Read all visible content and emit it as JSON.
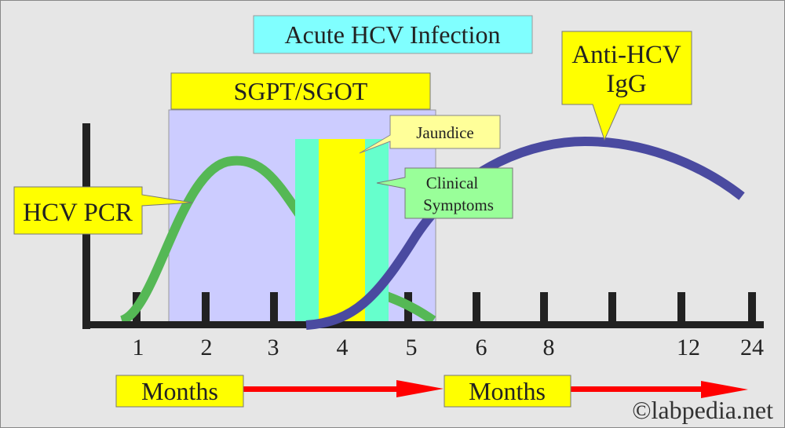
{
  "title": "Acute HCV Infection",
  "labels": {
    "sgpt": "SGPT/SGOT",
    "hcv_pcr": "HCV PCR",
    "jaundice": "Jaundice",
    "clinical_line1": "Clinical",
    "clinical_line2": "Symptoms",
    "anti_hcv_line1": "Anti-HCV",
    "anti_hcv_line2": "IgG"
  },
  "x_ticks": [
    "1",
    "2",
    "3",
    "4",
    "5",
    "6",
    "8",
    "12",
    "24"
  ],
  "months": [
    "Months",
    "Months"
  ],
  "watermark": "©labpedia.net",
  "colors": {
    "background": "#e6e6e6",
    "title_box": "#80ffff",
    "label_yellow": "#ffff00",
    "lavender": "#ccccff",
    "cyan_bar": "#66ffcc",
    "jaundice_box": "#ffff99",
    "clinical_box": "#99ff99",
    "pcr_curve": "#55b855",
    "igg_curve": "#4a4aa0",
    "arrow": "#ff0000"
  }
}
